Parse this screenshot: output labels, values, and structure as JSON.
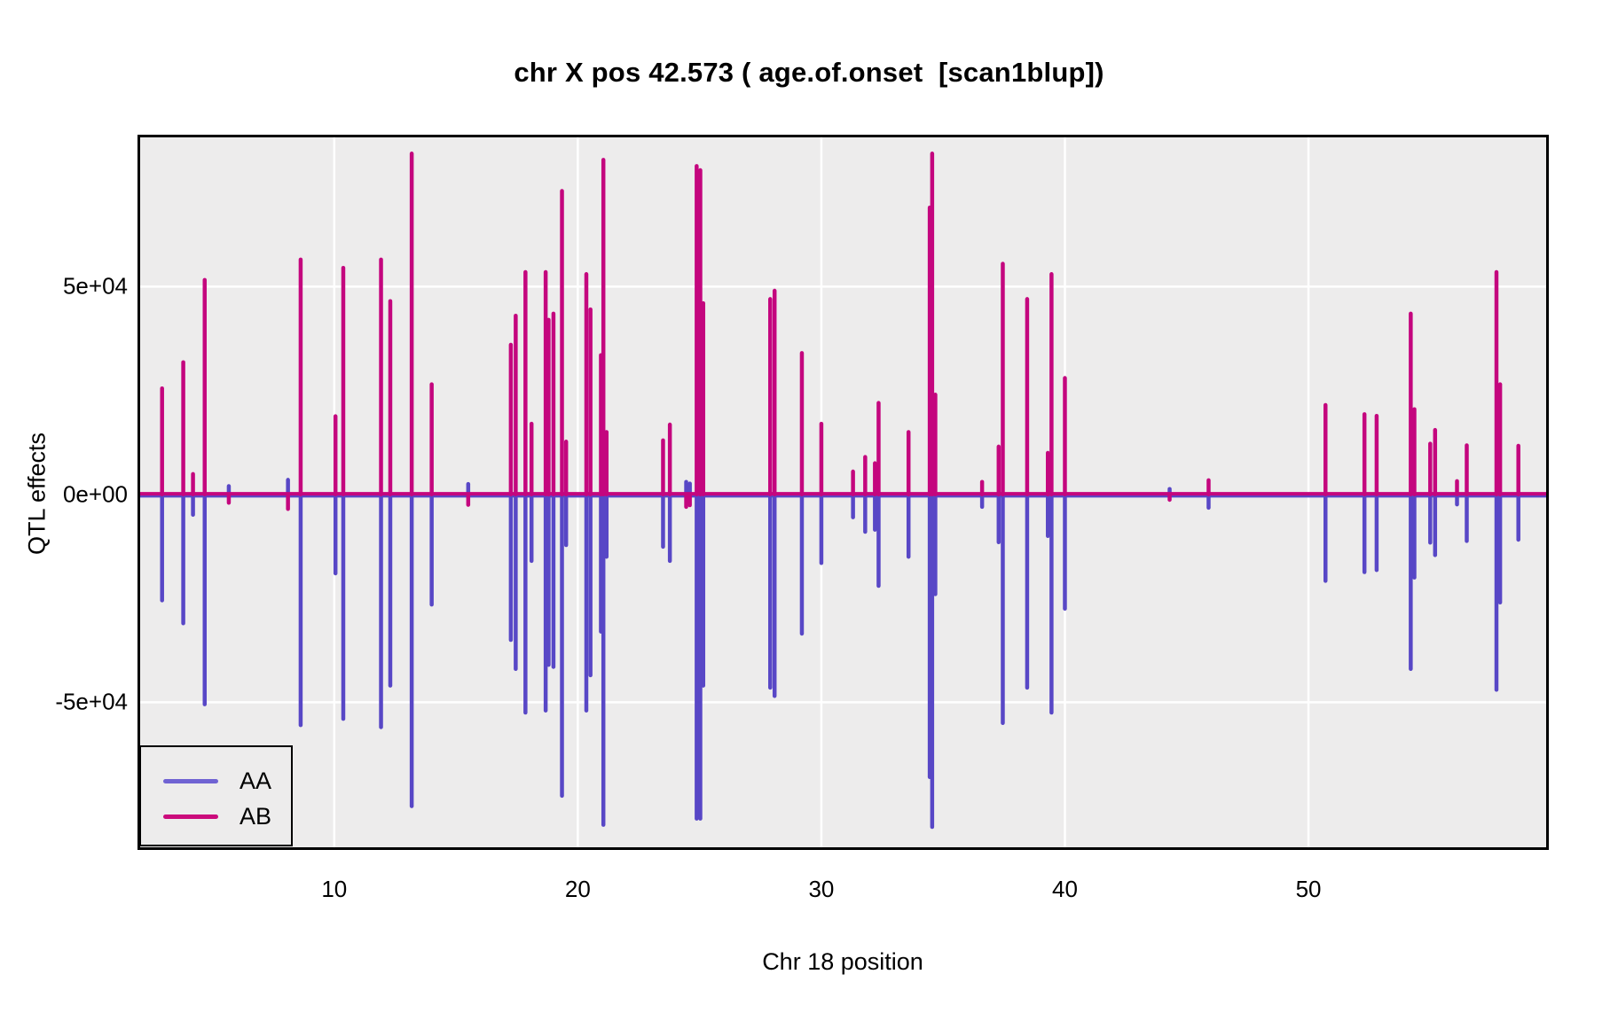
{
  "title": "chr X pos 42.573 ( age.of.onset  [scan1blup])",
  "colors": {
    "aa_line": "#5847C6",
    "ab_line": "#C4067E",
    "aa_legend": "#7063D3",
    "ab_legend": "#CB0B7C",
    "panel_background": "#EDECEC",
    "gridline": "#FFFFFF",
    "panel_border": "#000000",
    "text": "#000000"
  },
  "chart_data": {
    "type": "line",
    "subtype": "needle-spike-qtl-effect-plot",
    "title": "chr X pos 42.573 ( age.of.onset  [scan1blup])",
    "xlabel": "Chr 18 position",
    "ylabel": "QTL effects",
    "xlim": [
      2.03,
      59.76
    ],
    "ylim": [
      -84900,
      85900
    ],
    "grid": true,
    "legend_position": "bottom-left",
    "x_ticks": [
      {
        "label": "10",
        "value": 10
      },
      {
        "label": "20",
        "value": 20
      },
      {
        "label": "30",
        "value": 30
      },
      {
        "label": "40",
        "value": 40
      },
      {
        "label": "50",
        "value": 50
      }
    ],
    "y_ticks": [
      {
        "label": "5e+04",
        "value": 50000
      },
      {
        "label": "0e+00",
        "value": 0
      },
      {
        "label": "-5e+04",
        "value": -50000
      }
    ],
    "series": [
      {
        "name": "AA",
        "role": "negative-mirror-spikes"
      },
      {
        "name": "AB",
        "role": "positive-spikes"
      }
    ],
    "baseline": 0,
    "spikes_note": "each spike: [chr_position, AB_effect, AA_effect]",
    "spikes": [
      [
        2.93,
        25500,
        -25500
      ],
      [
        3.8,
        31800,
        -31000
      ],
      [
        4.2,
        4900,
        -4900
      ],
      [
        4.68,
        51600,
        -50500
      ],
      [
        5.67,
        -2000,
        2000
      ],
      [
        8.1,
        -3500,
        3500
      ],
      [
        8.62,
        56500,
        -55500
      ],
      [
        10.05,
        18800,
        -19000
      ],
      [
        10.37,
        54500,
        -54000
      ],
      [
        11.92,
        56500,
        -56000
      ],
      [
        12.3,
        46500,
        -46000
      ],
      [
        13.18,
        82000,
        -75000
      ],
      [
        14.0,
        26500,
        -26500
      ],
      [
        15.5,
        -2500,
        2500
      ],
      [
        17.25,
        36000,
        -35000
      ],
      [
        17.45,
        43000,
        -42000
      ],
      [
        17.85,
        53500,
        -52500
      ],
      [
        18.1,
        17000,
        -16000
      ],
      [
        18.68,
        53500,
        -52000
      ],
      [
        18.8,
        42000,
        -41000
      ],
      [
        19.0,
        43500,
        -41500
      ],
      [
        19.35,
        73000,
        -72500
      ],
      [
        19.52,
        12700,
        -12200
      ],
      [
        20.35,
        53000,
        -52000
      ],
      [
        20.52,
        44500,
        -43500
      ],
      [
        20.95,
        33500,
        -33000
      ],
      [
        21.05,
        80500,
        -79500
      ],
      [
        21.18,
        15000,
        -15000
      ],
      [
        23.5,
        13000,
        -12600
      ],
      [
        23.78,
        16800,
        -16000
      ],
      [
        24.45,
        -3000,
        3000
      ],
      [
        24.6,
        -2600,
        2600
      ],
      [
        24.88,
        79000,
        -78000
      ],
      [
        25.03,
        78000,
        -78000
      ],
      [
        25.15,
        46000,
        -46000
      ],
      [
        27.9,
        47000,
        -46500
      ],
      [
        28.08,
        49000,
        -48500
      ],
      [
        29.2,
        34000,
        -33500
      ],
      [
        30.0,
        17000,
        -16500
      ],
      [
        31.3,
        5500,
        -5500
      ],
      [
        31.8,
        9000,
        -9000
      ],
      [
        32.2,
        7500,
        -8500
      ],
      [
        32.35,
        22000,
        -22000
      ],
      [
        33.58,
        15000,
        -15000
      ],
      [
        34.45,
        69000,
        -68000
      ],
      [
        34.55,
        82000,
        -80000
      ],
      [
        34.68,
        24000,
        -24000
      ],
      [
        36.6,
        3000,
        -3000
      ],
      [
        37.28,
        11500,
        -11500
      ],
      [
        37.45,
        55500,
        -55000
      ],
      [
        38.45,
        47000,
        -46500
      ],
      [
        39.3,
        10000,
        -10000
      ],
      [
        39.45,
        53000,
        -52500
      ],
      [
        40.0,
        28000,
        -27500
      ],
      [
        44.3,
        -1300,
        1300
      ],
      [
        45.9,
        3400,
        -3200
      ],
      [
        50.7,
        21500,
        -20800
      ],
      [
        52.3,
        19300,
        -18700
      ],
      [
        52.8,
        18900,
        -18200
      ],
      [
        54.2,
        43500,
        -42000
      ],
      [
        54.35,
        20500,
        -20000
      ],
      [
        55.0,
        12200,
        -11600
      ],
      [
        55.2,
        15500,
        -14600
      ],
      [
        56.1,
        3200,
        -2400
      ],
      [
        56.5,
        11800,
        -11200
      ],
      [
        57.72,
        53500,
        -47000
      ],
      [
        57.87,
        26500,
        -26000
      ],
      [
        58.62,
        11700,
        -10900
      ]
    ]
  }
}
